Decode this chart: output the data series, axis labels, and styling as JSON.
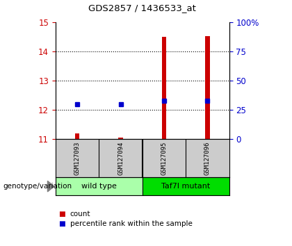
{
  "title": "GDS2857 / 1436533_at",
  "samples": [
    "GSM127093",
    "GSM127094",
    "GSM127095",
    "GSM127096"
  ],
  "red_values": [
    11.2,
    11.05,
    14.5,
    14.52
  ],
  "blue_values": [
    12.2,
    12.2,
    12.3,
    12.3
  ],
  "ylim_left": [
    11,
    15
  ],
  "yticks_left": [
    11,
    12,
    13,
    14,
    15
  ],
  "ylim_right": [
    0,
    100
  ],
  "yticks_right": [
    0,
    25,
    50,
    75,
    100
  ],
  "yticklabels_right": [
    "0",
    "25",
    "50",
    "75",
    "100%"
  ],
  "bar_bottom": 11,
  "wild_type_color": "#aaffaa",
  "taf7l_color": "#00dd00",
  "group_label": "genotype/variation",
  "legend_red": "count",
  "legend_blue": "percentile rank within the sample",
  "red_color": "#cc0000",
  "blue_color": "#0000cc",
  "left_tick_color": "#cc0000",
  "right_tick_color": "#0000cc",
  "sample_bg": "#cccccc",
  "gridline_color": "black"
}
